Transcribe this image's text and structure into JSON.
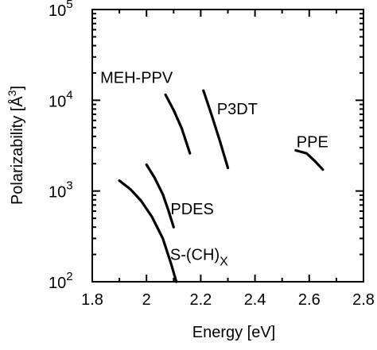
{
  "chart_data": {
    "type": "line",
    "title": "",
    "xlabel": "Energy  [eV]",
    "ylabel": "Polarizability   [Å",
    "ylabel_sup": "3",
    "ylabel_close": "]",
    "xlim": [
      1.8,
      2.8
    ],
    "ylim": [
      100,
      100000
    ],
    "xscale": "linear",
    "yscale": "log",
    "grid": false,
    "legend": "none",
    "xticks": [
      1.8,
      2.0,
      2.2,
      2.4,
      2.6,
      2.8
    ],
    "xtick_labels": [
      "1.8",
      "2",
      "2.2",
      "2.4",
      "2.6",
      "2.8"
    ],
    "yticks": [
      {
        "value": 100,
        "base": "10",
        "exp": "2"
      },
      {
        "value": 1000,
        "base": "10",
        "exp": "3"
      },
      {
        "value": 10000,
        "base": "10",
        "exp": "4"
      },
      {
        "value": 100000,
        "base": "10",
        "exp": "5"
      }
    ],
    "series": [
      {
        "name": "MEH-PPV",
        "x": [
          2.07,
          2.1,
          2.13,
          2.16
        ],
        "y": [
          11500,
          7800,
          4900,
          2600
        ]
      },
      {
        "name": "P3DT",
        "x": [
          2.21,
          2.24,
          2.27,
          2.3
        ],
        "y": [
          12800,
          6900,
          3600,
          1800
        ]
      },
      {
        "name": "PPE",
        "x": [
          2.55,
          2.59,
          2.62,
          2.65
        ],
        "y": [
          2800,
          2600,
          2150,
          1720
        ]
      },
      {
        "name": "PDES",
        "x": [
          2.0,
          2.03,
          2.06,
          2.08,
          2.1
        ],
        "y": [
          1950,
          1400,
          920,
          620,
          400
        ]
      },
      {
        "name": "S-(CH)",
        "name_sub": "X",
        "x": [
          1.9,
          1.94,
          1.98,
          2.02,
          2.06,
          2.09,
          2.11
        ],
        "y": [
          1300,
          1050,
          780,
          520,
          300,
          160,
          100
        ]
      }
    ]
  }
}
